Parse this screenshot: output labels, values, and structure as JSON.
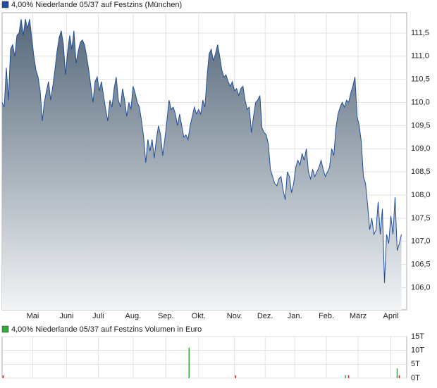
{
  "chart_data": [
    {
      "type": "area",
      "title": "4,00% Niederlande 05/37 auf Festzins (München)",
      "color": "#1f4e9c",
      "x": [
        0,
        2,
        4,
        6,
        8,
        10,
        12,
        14,
        16,
        18,
        20,
        22,
        24,
        26,
        28,
        30,
        32,
        34,
        36,
        38,
        40,
        42,
        44,
        46,
        48,
        50,
        52,
        54,
        56,
        58,
        60,
        62,
        64,
        66,
        68,
        70,
        72,
        74,
        76,
        78,
        80,
        82,
        84,
        86,
        88,
        90,
        92,
        94,
        96,
        98,
        100,
        102,
        104,
        106,
        108,
        110,
        112,
        114,
        116,
        118,
        120,
        122,
        124,
        126,
        128,
        130,
        132,
        134,
        136,
        138,
        140,
        142,
        144,
        146,
        148,
        150,
        152,
        154,
        156,
        158,
        160,
        162,
        164,
        166,
        168,
        170,
        172,
        174,
        176,
        178,
        180,
        182,
        184,
        186,
        188,
        190,
        192,
        194,
        196,
        198,
        200,
        202,
        204,
        206,
        208,
        210,
        212,
        214,
        216,
        218,
        220,
        222,
        224,
        226,
        228,
        230,
        232,
        234,
        236,
        238,
        240,
        242,
        244,
        246,
        248,
        250,
        252,
        254,
        256,
        258,
        260,
        262,
        264,
        266,
        268,
        270,
        272,
        274,
        276,
        278,
        280,
        282,
        284,
        286,
        288,
        290,
        292,
        294,
        296,
        298,
        300,
        302,
        304,
        306,
        308,
        310,
        312,
        314,
        316,
        318,
        320,
        322,
        324,
        326,
        328,
        330,
        332,
        334,
        336,
        338,
        340,
        342,
        344,
        346,
        348,
        350,
        352,
        354,
        356,
        358,
        360,
        362,
        364,
        366,
        368,
        370,
        372,
        374,
        376,
        378
      ],
      "values": [
        110.0,
        109.9,
        110.75,
        110.05,
        111.15,
        111.25,
        111.0,
        111.45,
        111.5,
        111.8,
        111.45,
        111.8,
        111.6,
        111.8,
        111.4,
        111.0,
        110.7,
        110.55,
        110.25,
        109.6,
        110.0,
        110.25,
        110.45,
        110.05,
        110.35,
        110.7,
        111.1,
        111.4,
        111.55,
        111.25,
        110.6,
        111.1,
        111.45,
        111.15,
        111.55,
        110.85,
        111.1,
        111.3,
        111.35,
        111.25,
        111.0,
        110.7,
        110.35,
        110.0,
        110.45,
        110.55,
        110.25,
        110.45,
        110.15,
        109.85,
        109.6,
        110.05,
        109.9,
        110.3,
        110.55,
        110.05,
        109.9,
        110.3,
        110.05,
        109.7,
        110.0,
        109.85,
        110.35,
        110.2,
        110.0,
        109.9,
        109.6,
        109.25,
        108.7,
        109.2,
        108.95,
        109.2,
        108.8,
        109.2,
        109.5,
        109.3,
        108.85,
        109.2,
        109.6,
        110.05,
        109.85,
        109.9,
        109.75,
        109.5,
        109.75,
        109.5,
        109.25,
        109.3,
        109.2,
        109.5,
        109.7,
        109.9,
        109.75,
        109.85,
        109.75,
        110.05,
        109.9,
        110.55,
        111.05,
        111.15,
        110.9,
        111.05,
        111.25,
        111.0,
        110.7,
        110.55,
        110.6,
        110.45,
        110.35,
        110.45,
        110.25,
        110.3,
        110.15,
        110.3,
        110.35,
        110.05,
        109.85,
        109.9,
        109.35,
        109.7,
        110.0,
        110.05,
        110.15,
        109.45,
        109.35,
        109.3,
        109.1,
        108.55,
        108.4,
        108.25,
        108.2,
        108.35,
        108.4,
        108.1,
        107.9,
        108.5,
        108.4,
        108.05,
        108.25,
        108.6,
        108.75,
        108.65,
        108.9,
        108.75,
        109.0,
        108.5,
        108.35,
        108.55,
        108.4,
        108.5,
        108.6,
        108.75,
        108.55,
        108.4,
        108.5,
        108.6,
        109.0,
        108.85,
        109.45,
        109.75,
        109.9,
        110.0,
        109.9,
        110.05,
        110.0,
        110.2,
        110.35,
        110.55,
        109.7,
        109.5,
        109.15,
        108.4,
        108.25,
        107.8,
        107.25,
        107.5,
        107.15,
        107.25,
        107.85,
        107.15,
        107.7,
        106.1,
        107.15,
        106.95,
        107.55,
        107.15,
        107.95,
        106.8,
        106.95,
        107.15
      ],
      "xlim": [
        0,
        383
      ],
      "xticks": [
        {
          "value": 29,
          "label": "Mai"
        },
        {
          "value": 61,
          "label": "Juni"
        },
        {
          "value": 91,
          "label": "Juli"
        },
        {
          "value": 124,
          "label": "Aug."
        },
        {
          "value": 155,
          "label": "Sep."
        },
        {
          "value": 186,
          "label": "Okt."
        },
        {
          "value": 220,
          "label": "Nov."
        },
        {
          "value": 249,
          "label": "Dez."
        },
        {
          "value": 277,
          "label": "Jan."
        },
        {
          "value": 307,
          "label": "Feb."
        },
        {
          "value": 337,
          "label": "März"
        },
        {
          "value": 368,
          "label": "April"
        }
      ],
      "ylim": [
        105.52,
        111.94
      ],
      "yticks": [
        {
          "value": 106.0,
          "label": "106,0"
        },
        {
          "value": 106.5,
          "label": "106,5"
        },
        {
          "value": 107.0,
          "label": "107,0"
        },
        {
          "value": 107.5,
          "label": "107,5"
        },
        {
          "value": 108.0,
          "label": "108,0"
        },
        {
          "value": 108.5,
          "label": "108,5"
        },
        {
          "value": 109.0,
          "label": "109,0"
        },
        {
          "value": 109.5,
          "label": "109,5"
        },
        {
          "value": 110.0,
          "label": "110,0"
        },
        {
          "value": 110.5,
          "label": "110,5"
        },
        {
          "value": 111.0,
          "label": "111,0"
        },
        {
          "value": 111.5,
          "label": "111,5"
        }
      ],
      "grid": true
    },
    {
      "type": "bar",
      "title": "4,00% Niederlande 05/37 auf Festzins Volumen in Euro",
      "color": "#33aa33",
      "x": [
        1,
        177,
        221,
        325,
        328,
        374,
        376
      ],
      "values": [
        1,
        11,
        1,
        1,
        1,
        3.5,
        1
      ],
      "colors": [
        "#cc2222",
        "#33aa33",
        "#cc2222",
        "#33aa33",
        "#cc2222",
        "#33aa33",
        "#cc2222"
      ],
      "xlim": [
        0,
        383
      ],
      "ylim": [
        0,
        15
      ],
      "yticks": [
        {
          "value": 0,
          "label": "0T"
        },
        {
          "value": 5,
          "label": "5T"
        },
        {
          "value": 10,
          "label": "10T"
        },
        {
          "value": 15,
          "label": "15T"
        }
      ],
      "grid": true
    }
  ]
}
